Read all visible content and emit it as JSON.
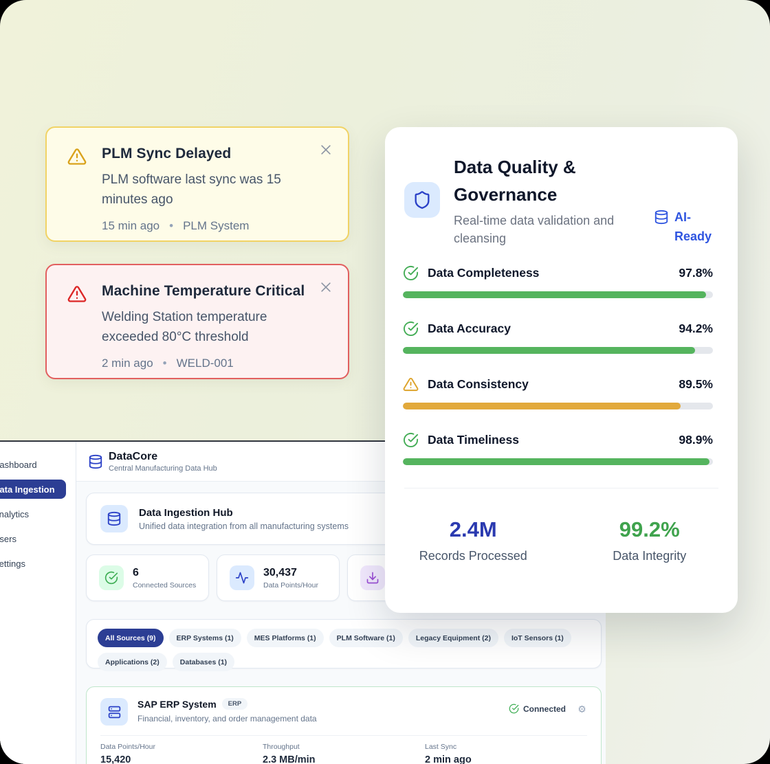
{
  "toasts": [
    {
      "severity": "warning",
      "title": "PLM Sync Delayed",
      "message": "PLM software last sync was 15 minutes ago",
      "time": "15 min ago",
      "source": "PLM System"
    },
    {
      "severity": "critical",
      "title": "Machine Temperature Critical",
      "message": "Welding Station temperature exceeded 80°C threshold",
      "time": "2 min ago",
      "source": "WELD-001"
    }
  ],
  "quality_card": {
    "title": "Data Quality & Governance",
    "subtitle": "Real-time data validation and cleansing",
    "badge": "AI-Ready",
    "metrics": [
      {
        "label": "Data Completeness",
        "value": "97.8%",
        "pct": 97.8,
        "status": "good"
      },
      {
        "label": "Data Accuracy",
        "value": "94.2%",
        "pct": 94.2,
        "status": "good"
      },
      {
        "label": "Data Consistency",
        "value": "89.5%",
        "pct": 89.5,
        "status": "warning"
      },
      {
        "label": "Data Timeliness",
        "value": "98.9%",
        "pct": 98.9,
        "status": "good"
      }
    ],
    "summary": [
      {
        "value": "2.4M",
        "label": "Records Processed"
      },
      {
        "value": "99.2%",
        "label": "Data Integrity"
      }
    ]
  },
  "dashboard": {
    "sidebar": {
      "items": [
        {
          "label": "Dashboard",
          "active": false
        },
        {
          "label": "Data Ingestion",
          "active": true
        },
        {
          "label": "Analytics",
          "active": false
        },
        {
          "label": "Users",
          "active": false
        },
        {
          "label": "Settings",
          "active": false
        }
      ]
    },
    "header": {
      "title": "DataCore",
      "subtitle": "Central Manufacturing Data Hub"
    },
    "hub": {
      "title": "Data Ingestion Hub",
      "subtitle": "Unified data integration from all manufacturing systems"
    },
    "stats": [
      {
        "value": "6",
        "label": "Connected Sources"
      },
      {
        "value": "30,437",
        "label": "Data Points/Hour"
      },
      {
        "value": "",
        "label": ""
      }
    ],
    "filters": [
      {
        "label": "All Sources (9)",
        "active": true
      },
      {
        "label": "ERP Systems (1)",
        "active": false
      },
      {
        "label": "MES Platforms (1)",
        "active": false
      },
      {
        "label": "PLM Software (1)",
        "active": false
      },
      {
        "label": "Legacy Equipment (2)",
        "active": false
      },
      {
        "label": "IoT Sensors (1)",
        "active": false
      },
      {
        "label": "Applications (2)",
        "active": false
      },
      {
        "label": "Databases (1)",
        "active": false
      }
    ],
    "source_card": {
      "title": "SAP ERP System",
      "badge": "ERP",
      "subtitle": "Financial, inventory, and order management data",
      "status": "Connected",
      "gear": "⚙",
      "metrics": [
        {
          "label": "Data Points/Hour",
          "value": "15,420"
        },
        {
          "label": "Throughput",
          "value": "2.3 MB/min"
        },
        {
          "label": "Last Sync",
          "value": "2 min ago"
        }
      ]
    }
  },
  "colors": {
    "accent_blue": "#2c3e94",
    "link_blue": "#2f55e0",
    "green": "#55b45e",
    "amber": "#e2a93b",
    "red": "#dc2626",
    "navy_text": "#0f172a"
  }
}
